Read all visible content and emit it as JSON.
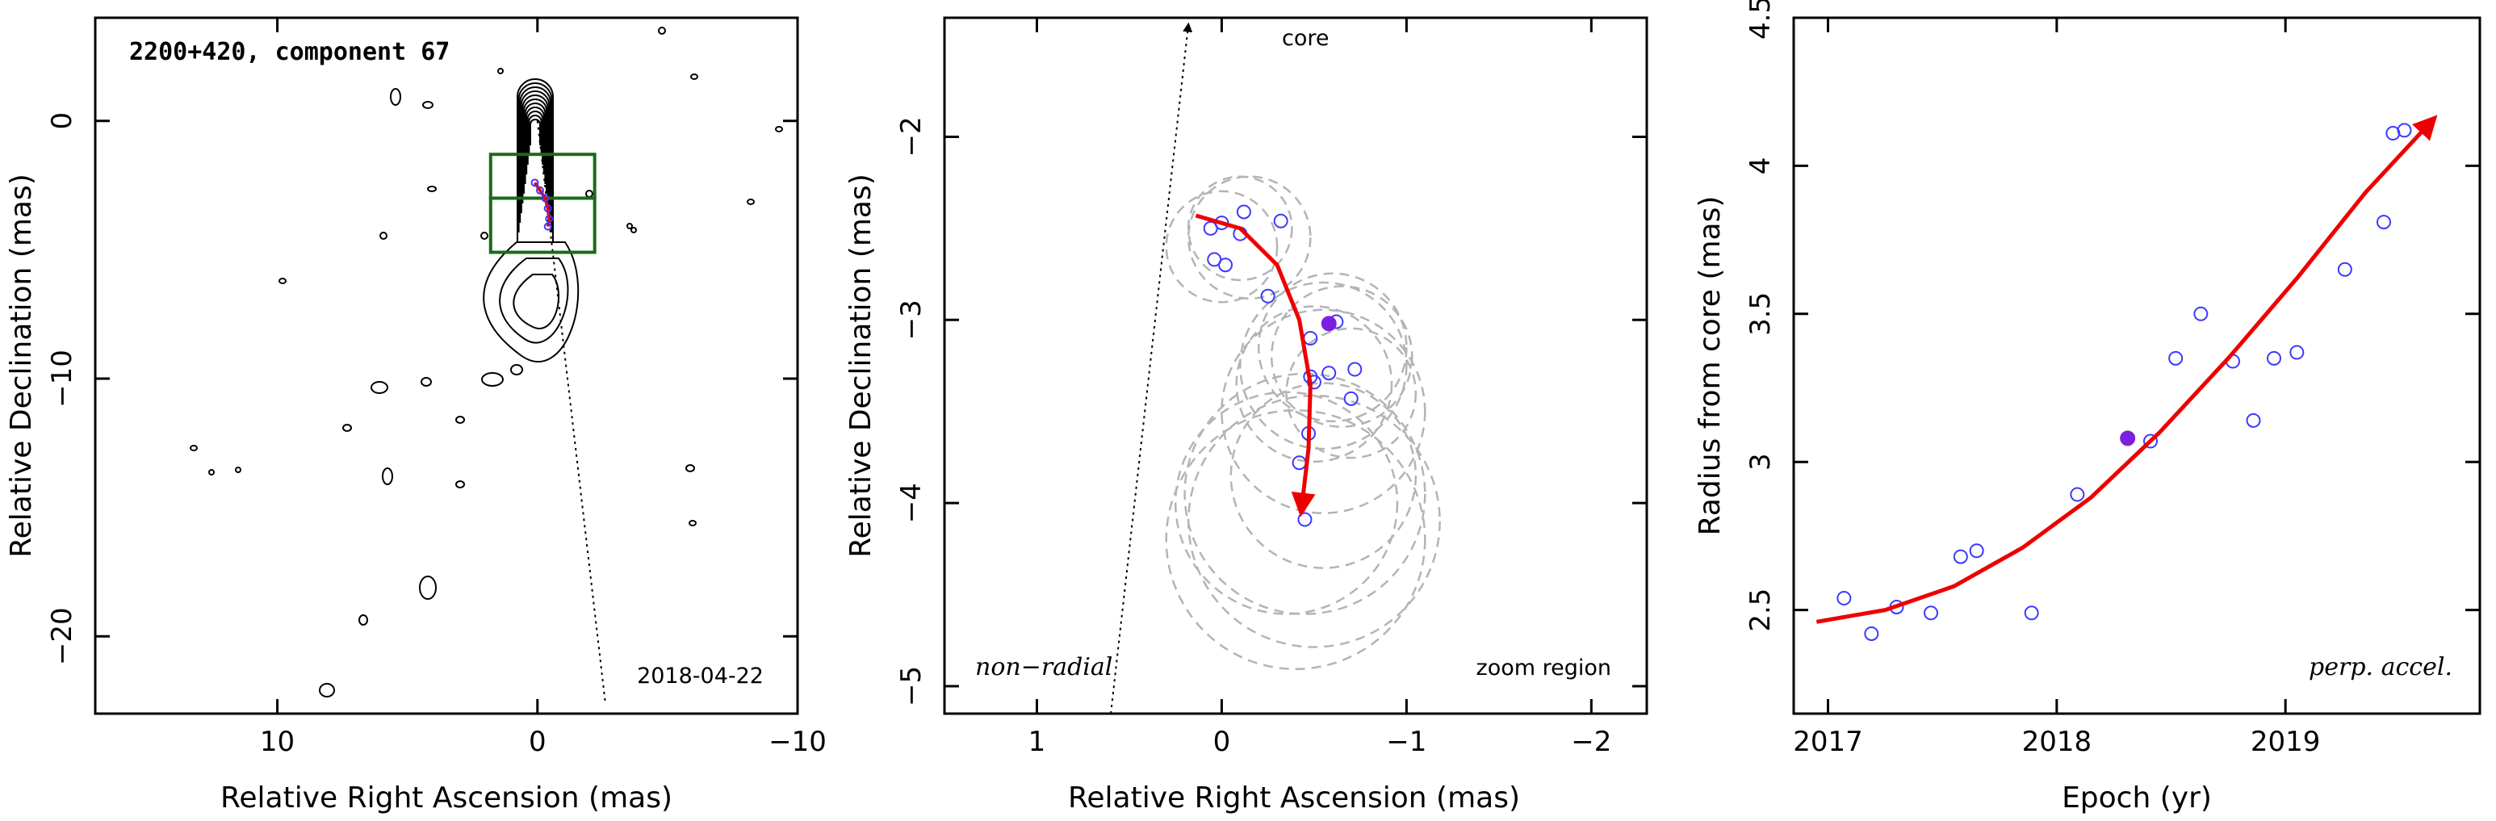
{
  "colors": {
    "axis": "#000000",
    "contour": "#000000",
    "box": "#1a6b1a",
    "points": "#3a3aff",
    "filled_point": "#7b1fe0",
    "circles": "#b4b4b4",
    "fit": "#ee0000"
  },
  "chart_data": [
    {
      "type": "contour",
      "title": "2200+420, component 67",
      "xlabel": "Relative Right Ascension (mas)",
      "ylabel": "Relative Declination (mas)",
      "xlim": [
        17,
        -10
      ],
      "ylim": [
        -23,
        4
      ],
      "xticks": [
        10,
        0,
        -10
      ],
      "yticks": [
        0,
        -10,
        -20
      ],
      "date_label": "2018-04-22",
      "boxes": [
        {
          "ra": [
            1.8,
            -2.2
          ],
          "dec": [
            -1.3,
            -3.0
          ]
        },
        {
          "ra": [
            1.8,
            -2.2
          ],
          "dec": [
            -3.0,
            -5.1
          ]
        }
      ],
      "core_line": {
        "from": [
          0,
          0
        ],
        "to": [
          -2.6,
          -22.5
        ]
      },
      "component_track": [
        {
          "ra": 0.1,
          "dec": -2.4
        },
        {
          "ra": -0.1,
          "dec": -2.7
        },
        {
          "ra": -0.3,
          "dec": -3.0
        },
        {
          "ra": -0.4,
          "dec": -3.4
        },
        {
          "ra": -0.45,
          "dec": -3.8
        },
        {
          "ra": -0.4,
          "dec": -4.1
        }
      ]
    },
    {
      "type": "scatter",
      "title": "",
      "xlabel": "Relative Right Ascension (mas)",
      "ylabel": "Relative Declination (mas)",
      "xlim": [
        1.5,
        -2.3
      ],
      "ylim": [
        -5.15,
        -1.35
      ],
      "xticks": [
        1,
        0,
        -1,
        -2
      ],
      "yticks": [
        -2,
        -3,
        -4,
        -5
      ],
      "core_arrow_label": "core",
      "core_line": {
        "from": [
          0.6,
          -5.15
        ],
        "to": [
          0.18,
          -1.35
        ]
      },
      "left_label": "non−radial",
      "right_label": "zoom region",
      "points": [
        {
          "ra": 0.06,
          "dec": -2.5
        },
        {
          "ra": -0.12,
          "dec": -2.41
        },
        {
          "ra": -0.32,
          "dec": -2.46
        },
        {
          "ra": 0.0,
          "dec": -2.47
        },
        {
          "ra": -0.1,
          "dec": -2.53
        },
        {
          "ra": 0.04,
          "dec": -2.67
        },
        {
          "ra": -0.02,
          "dec": -2.7
        },
        {
          "ra": -0.25,
          "dec": -2.87
        },
        {
          "ra": -0.62,
          "dec": -3.01
        },
        {
          "ra": -0.48,
          "dec": -3.1
        },
        {
          "ra": -0.58,
          "dec": -3.29
        },
        {
          "ra": -0.72,
          "dec": -3.27
        },
        {
          "ra": -0.48,
          "dec": -3.31
        },
        {
          "ra": -0.5,
          "dec": -3.34
        },
        {
          "ra": -0.7,
          "dec": -3.43
        },
        {
          "ra": -0.47,
          "dec": -3.62
        },
        {
          "ra": -0.42,
          "dec": -3.78
        },
        {
          "ra": -0.45,
          "dec": -4.09
        }
      ],
      "filled_point": {
        "ra": -0.58,
        "dec": -3.02
      },
      "circles": [
        {
          "ra": -0.1,
          "dec": -2.5,
          "r": 0.28
        },
        {
          "ra": -0.15,
          "dec": -2.55,
          "r": 0.33
        },
        {
          "ra": 0.0,
          "dec": -2.6,
          "r": 0.3
        },
        {
          "ra": -0.6,
          "dec": -3.15,
          "r": 0.4
        },
        {
          "ra": -0.55,
          "dec": -3.25,
          "r": 0.45
        },
        {
          "ra": -0.65,
          "dec": -3.2,
          "r": 0.38
        },
        {
          "ra": -0.5,
          "dec": -3.35,
          "r": 0.42
        },
        {
          "ra": -0.7,
          "dec": -3.4,
          "r": 0.35
        },
        {
          "ra": -0.55,
          "dec": -3.5,
          "r": 0.55
        },
        {
          "ra": -0.45,
          "dec": -3.95,
          "r": 0.65
        },
        {
          "ra": -0.5,
          "dec": -4.1,
          "r": 0.68
        },
        {
          "ra": -0.35,
          "dec": -4.0,
          "r": 0.6
        },
        {
          "ra": -0.4,
          "dec": -4.2,
          "r": 0.7
        },
        {
          "ra": -0.55,
          "dec": -3.85,
          "r": 0.5
        }
      ],
      "fit_curve": [
        {
          "ra": 0.14,
          "dec": -2.43
        },
        {
          "ra": -0.1,
          "dec": -2.5
        },
        {
          "ra": -0.3,
          "dec": -2.7
        },
        {
          "ra": -0.42,
          "dec": -3.0
        },
        {
          "ra": -0.48,
          "dec": -3.35
        },
        {
          "ra": -0.47,
          "dec": -3.7
        },
        {
          "ra": -0.43,
          "dec": -4.05
        }
      ]
    },
    {
      "type": "scatter",
      "title": "",
      "xlabel": "Epoch (yr)",
      "ylabel": "Radius from core (mas)",
      "xlim": [
        2016.85,
        2019.85
      ],
      "ylim": [
        2.15,
        4.5
      ],
      "xticks": [
        2017,
        2018,
        2019
      ],
      "yticks": [
        2.5,
        3,
        3.5,
        4,
        4.5
      ],
      "corner_label": "perp. accel.",
      "points": [
        {
          "x": 2017.07,
          "y": 2.54
        },
        {
          "x": 2017.19,
          "y": 2.42
        },
        {
          "x": 2017.3,
          "y": 2.51
        },
        {
          "x": 2017.45,
          "y": 2.49
        },
        {
          "x": 2017.58,
          "y": 2.68
        },
        {
          "x": 2017.65,
          "y": 2.7
        },
        {
          "x": 2017.89,
          "y": 2.49
        },
        {
          "x": 2018.09,
          "y": 2.89
        },
        {
          "x": 2018.41,
          "y": 3.07
        },
        {
          "x": 2018.52,
          "y": 3.35
        },
        {
          "x": 2018.63,
          "y": 3.5
        },
        {
          "x": 2018.77,
          "y": 3.34
        },
        {
          "x": 2018.86,
          "y": 3.14
        },
        {
          "x": 2018.95,
          "y": 3.35
        },
        {
          "x": 2019.05,
          "y": 3.37
        },
        {
          "x": 2019.26,
          "y": 3.65
        },
        {
          "x": 2019.43,
          "y": 3.81
        },
        {
          "x": 2019.47,
          "y": 4.11
        },
        {
          "x": 2019.52,
          "y": 4.12
        }
      ],
      "filled_point": {
        "x": 2018.31,
        "y": 3.08
      },
      "fit_curve": [
        {
          "x": 2016.95,
          "y": 2.46
        },
        {
          "x": 2017.25,
          "y": 2.5
        },
        {
          "x": 2017.55,
          "y": 2.58
        },
        {
          "x": 2017.85,
          "y": 2.71
        },
        {
          "x": 2018.15,
          "y": 2.88
        },
        {
          "x": 2018.45,
          "y": 3.1
        },
        {
          "x": 2018.75,
          "y": 3.35
        },
        {
          "x": 2019.05,
          "y": 3.62
        },
        {
          "x": 2019.35,
          "y": 3.91
        },
        {
          "x": 2019.65,
          "y": 4.16
        }
      ]
    }
  ]
}
